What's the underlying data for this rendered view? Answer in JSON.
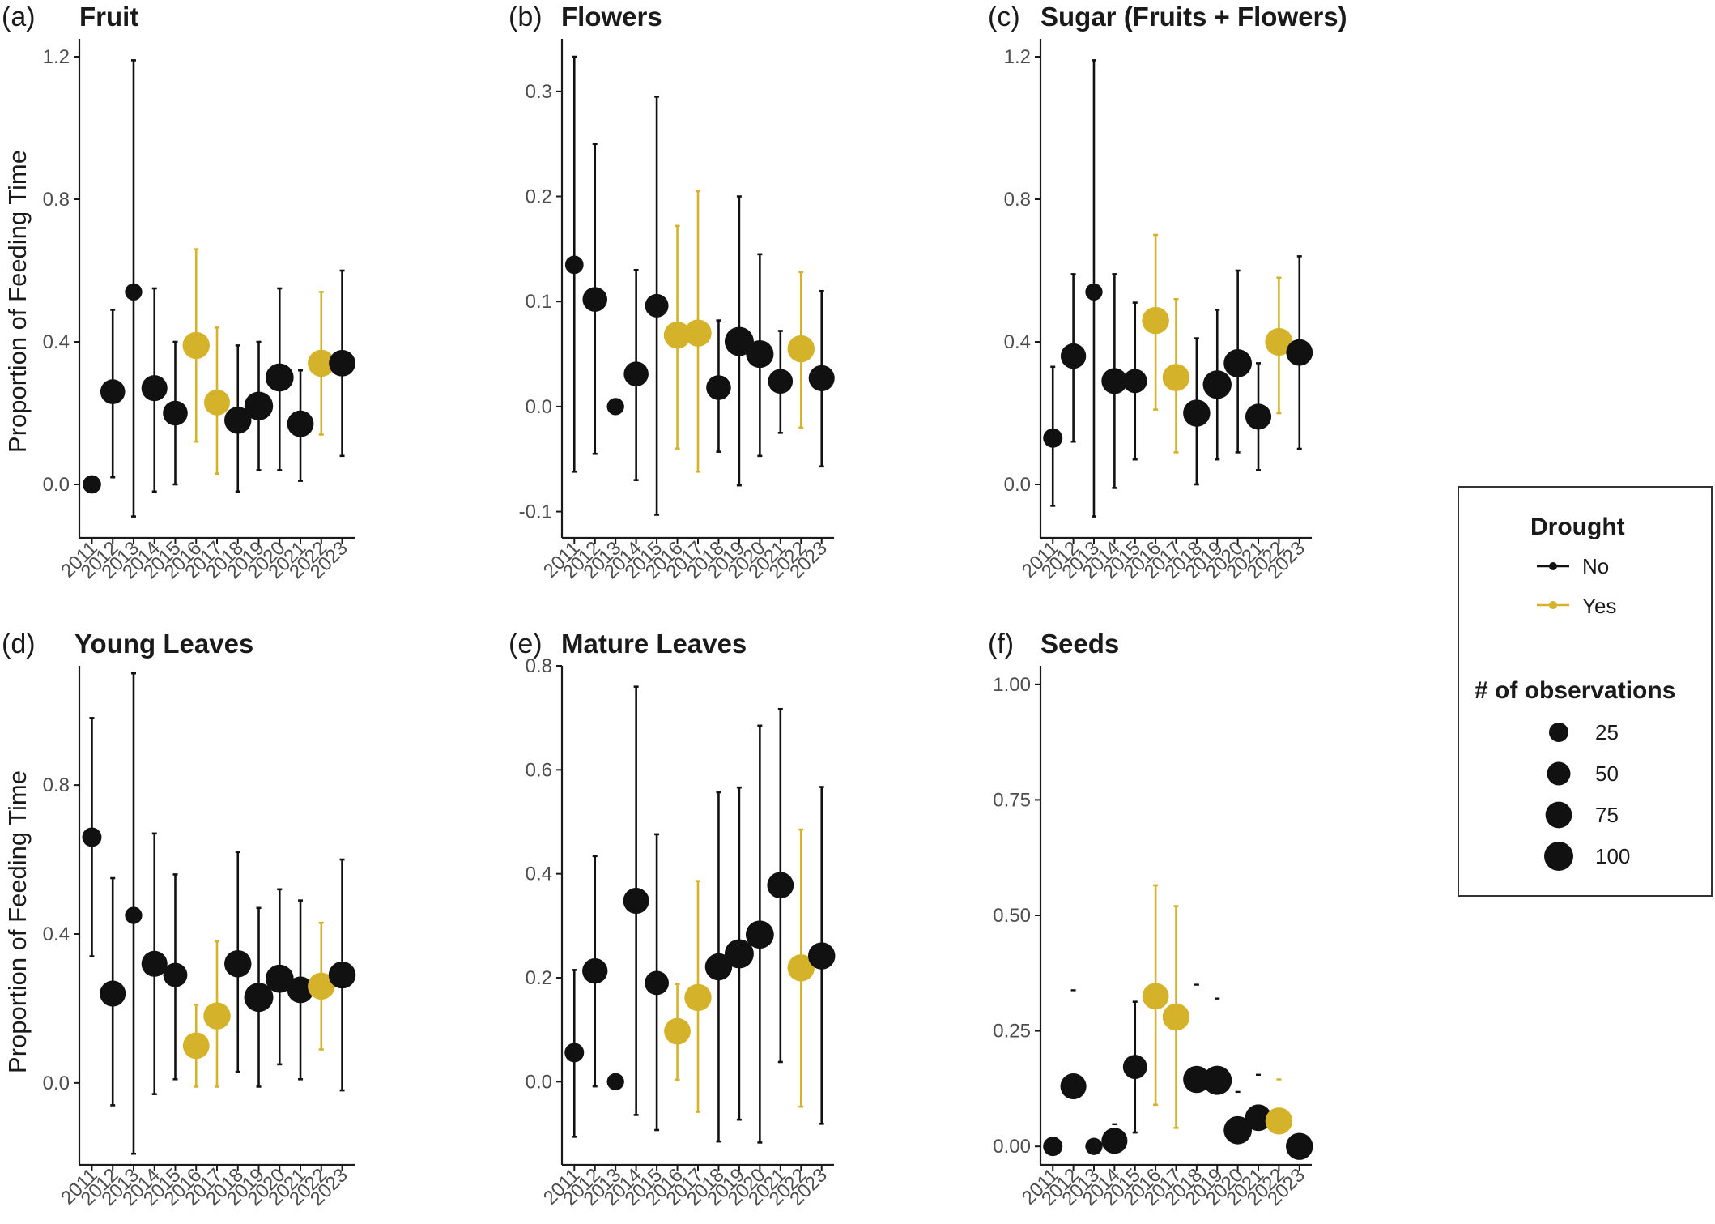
{
  "colors": {
    "No": "#111111",
    "Yes": "#D4B32B",
    "axis": "#1a1a1a",
    "tick_text": "#4d4d4d"
  },
  "y_axis_title": "Proportion of Feeding Time",
  "chart_data": [
    {
      "type": "scatter",
      "panel": "(a)",
      "title": "Fruit",
      "xlabel": "",
      "ylabel": "Proportion of Feeding Time",
      "ylim": [
        -0.15,
        1.25
      ],
      "yticks": [
        0.0,
        0.4,
        0.8,
        1.2
      ],
      "categories": [
        "2011",
        "2012",
        "2013",
        "2014",
        "2015",
        "2016",
        "2017",
        "2018",
        "2019",
        "2020",
        "2021",
        "2022",
        "2023"
      ],
      "drought": [
        "No",
        "No",
        "No",
        "No",
        "No",
        "Yes",
        "Yes",
        "No",
        "No",
        "No",
        "No",
        "Yes",
        "No"
      ],
      "y": [
        0.0,
        0.26,
        0.54,
        0.27,
        0.2,
        0.39,
        0.23,
        0.18,
        0.22,
        0.3,
        0.17,
        0.34,
        0.34
      ],
      "ymin": [
        null,
        0.02,
        -0.09,
        -0.02,
        0.0,
        0.12,
        0.03,
        -0.02,
        0.04,
        0.04,
        0.01,
        0.14,
        0.08
      ],
      "ymax": [
        null,
        0.49,
        1.19,
        0.55,
        0.4,
        0.66,
        0.44,
        0.39,
        0.4,
        0.55,
        0.32,
        0.54,
        0.6
      ],
      "n": [
        20,
        60,
        15,
        70,
        60,
        80,
        70,
        80,
        95,
        90,
        75,
        80,
        75
      ]
    },
    {
      "type": "scatter",
      "panel": "(b)",
      "title": "Flowers",
      "xlabel": "",
      "ylabel": "",
      "ylim": [
        -0.125,
        0.35
      ],
      "yticks": [
        -0.1,
        0.0,
        0.1,
        0.2,
        0.3
      ],
      "categories": [
        "2011",
        "2012",
        "2013",
        "2014",
        "2015",
        "2016",
        "2017",
        "2018",
        "2019",
        "2020",
        "2021",
        "2022",
        "2023"
      ],
      "drought": [
        "No",
        "No",
        "No",
        "No",
        "No",
        "Yes",
        "Yes",
        "No",
        "No",
        "No",
        "No",
        "Yes",
        "No"
      ],
      "y": [
        0.135,
        0.102,
        0.0,
        0.031,
        0.096,
        0.068,
        0.07,
        0.018,
        0.062,
        0.05,
        0.024,
        0.055,
        0.027
      ],
      "ymin": [
        -0.062,
        -0.045,
        null,
        -0.07,
        -0.103,
        -0.04,
        -0.062,
        -0.043,
        -0.075,
        -0.047,
        -0.025,
        -0.02,
        -0.057
      ],
      "ymax": [
        0.333,
        0.25,
        null,
        0.13,
        0.295,
        0.172,
        0.205,
        0.082,
        0.2,
        0.145,
        0.072,
        0.128,
        0.11
      ],
      "n": [
        20,
        60,
        15,
        60,
        50,
        80,
        80,
        60,
        100,
        85,
        60,
        80,
        70
      ]
    },
    {
      "type": "scatter",
      "panel": "(c)",
      "title": "Sugar (Fruits + Flowers)",
      "xlabel": "",
      "ylabel": "",
      "ylim": [
        -0.15,
        1.25
      ],
      "yticks": [
        0.0,
        0.4,
        0.8,
        1.2
      ],
      "categories": [
        "2011",
        "2012",
        "2013",
        "2014",
        "2015",
        "2016",
        "2017",
        "2018",
        "2019",
        "2020",
        "2021",
        "2022",
        "2023"
      ],
      "drought": [
        "No",
        "No",
        "No",
        "No",
        "No",
        "Yes",
        "Yes",
        "No",
        "No",
        "No",
        "No",
        "Yes",
        "No"
      ],
      "y": [
        0.13,
        0.36,
        0.54,
        0.29,
        0.29,
        0.46,
        0.3,
        0.2,
        0.28,
        0.34,
        0.19,
        0.4,
        0.37
      ],
      "ymin": [
        -0.06,
        0.12,
        -0.09,
        -0.01,
        0.07,
        0.21,
        0.09,
        0.0,
        0.07,
        0.09,
        0.04,
        0.2,
        0.1
      ],
      "ymax": [
        0.33,
        0.59,
        1.19,
        0.59,
        0.51,
        0.7,
        0.52,
        0.41,
        0.49,
        0.6,
        0.34,
        0.58,
        0.64
      ],
      "n": [
        25,
        65,
        15,
        70,
        55,
        80,
        80,
        80,
        95,
        90,
        70,
        85,
        75
      ]
    },
    {
      "type": "scatter",
      "panel": "(d)",
      "title": "Young Leaves",
      "xlabel": "",
      "ylabel": "Proportion of Feeding Time",
      "ylim": [
        -0.22,
        1.12
      ],
      "yticks": [
        0.0,
        0.4,
        0.8
      ],
      "categories": [
        "2011",
        "2012",
        "2013",
        "2014",
        "2015",
        "2016",
        "2017",
        "2018",
        "2019",
        "2020",
        "2021",
        "2022",
        "2023"
      ],
      "drought": [
        "No",
        "No",
        "No",
        "No",
        "No",
        "Yes",
        "Yes",
        "No",
        "No",
        "No",
        "No",
        "Yes",
        "No"
      ],
      "y": [
        0.66,
        0.24,
        0.45,
        0.32,
        0.29,
        0.1,
        0.18,
        0.32,
        0.23,
        0.28,
        0.25,
        0.26,
        0.29
      ],
      "ymin": [
        0.34,
        -0.06,
        -0.19,
        -0.03,
        0.01,
        -0.01,
        -0.01,
        0.03,
        -0.01,
        0.05,
        0.01,
        0.09,
        -0.02
      ],
      "ymax": [
        0.98,
        0.55,
        1.1,
        0.67,
        0.56,
        0.21,
        0.38,
        0.62,
        0.47,
        0.52,
        0.49,
        0.43,
        0.6
      ],
      "n": [
        25,
        70,
        15,
        70,
        55,
        75,
        80,
        80,
        100,
        90,
        75,
        80,
        80
      ]
    },
    {
      "type": "scatter",
      "panel": "(e)",
      "title": "Mature Leaves",
      "xlabel": "",
      "ylabel": "",
      "ylim": [
        -0.16,
        0.8
      ],
      "yticks": [
        0.0,
        0.2,
        0.4,
        0.6,
        0.8
      ],
      "categories": [
        "2011",
        "2012",
        "2013",
        "2014",
        "2015",
        "2016",
        "2017",
        "2018",
        "2019",
        "2020",
        "2021",
        "2022",
        "2023"
      ],
      "drought": [
        "No",
        "No",
        "No",
        "No",
        "No",
        "Yes",
        "Yes",
        "No",
        "No",
        "No",
        "No",
        "Yes",
        "No"
      ],
      "y": [
        0.056,
        0.213,
        0.0,
        0.348,
        0.19,
        0.097,
        0.162,
        0.221,
        0.246,
        0.283,
        0.378,
        0.219,
        0.242
      ],
      "ymin": [
        -0.106,
        -0.009,
        null,
        -0.064,
        -0.093,
        0.004,
        -0.058,
        -0.115,
        -0.073,
        -0.117,
        0.038,
        -0.048,
        -0.081
      ],
      "ymax": [
        0.215,
        0.434,
        null,
        0.76,
        0.476,
        0.188,
        0.386,
        0.557,
        0.566,
        0.685,
        0.717,
        0.485,
        0.567
      ],
      "n": [
        25,
        65,
        15,
        70,
        55,
        75,
        80,
        80,
        100,
        90,
        75,
        80,
        80
      ]
    },
    {
      "type": "scatter",
      "panel": "(f)",
      "title": "Seeds",
      "xlabel": "",
      "ylabel": "",
      "ylim": [
        -0.04,
        1.04
      ],
      "yticks": [
        0.0,
        0.25,
        0.5,
        0.75,
        1.0
      ],
      "ytick_labels": [
        "0.00",
        "0.25",
        "0.50",
        "0.75",
        "1.00"
      ],
      "categories": [
        "2011",
        "2012",
        "2013",
        "2014",
        "2015",
        "2016",
        "2017",
        "2018",
        "2019",
        "2020",
        "2021",
        "2022",
        "2023"
      ],
      "drought": [
        "No",
        "No",
        "No",
        "No",
        "No",
        "Yes",
        "Yes",
        "No",
        "No",
        "No",
        "No",
        "Yes",
        "No"
      ],
      "y": [
        0.0,
        0.13,
        0.0,
        0.012,
        0.172,
        0.325,
        0.28,
        0.145,
        0.143,
        0.035,
        0.062,
        0.055,
        0.0
      ],
      "ymin": [
        null,
        null,
        null,
        null,
        0.03,
        0.09,
        0.04,
        null,
        null,
        null,
        null,
        null,
        null
      ],
      "ymax": [
        null,
        0.338,
        null,
        0.048,
        0.313,
        0.565,
        0.52,
        0.35,
        0.32,
        0.118,
        0.155,
        0.145,
        null
      ],
      "n": [
        25,
        70,
        15,
        70,
        55,
        75,
        80,
        80,
        100,
        90,
        75,
        80,
        80
      ]
    }
  ],
  "legend": {
    "drought_title": "Drought",
    "drought_items": [
      {
        "label": "No",
        "value": "No"
      },
      {
        "label": "Yes",
        "value": "Yes"
      }
    ],
    "size_title": "# of observations",
    "size_items": [
      {
        "label": "25",
        "n": 25
      },
      {
        "label": "50",
        "n": 50
      },
      {
        "label": "75",
        "n": 75
      },
      {
        "label": "100",
        "n": 100
      }
    ]
  }
}
